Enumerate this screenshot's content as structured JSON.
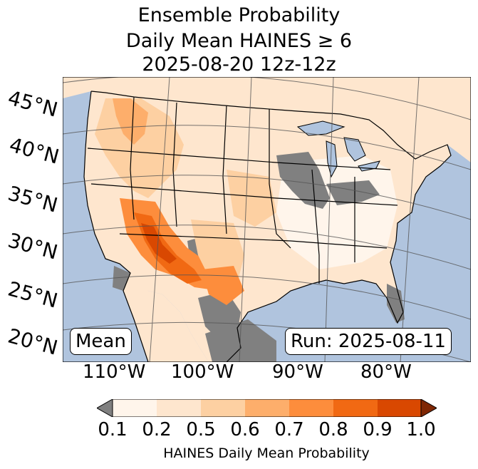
{
  "title": {
    "line1": "Ensemble Probability",
    "line2": "Daily Mean HAINES ≥ 6",
    "line3": "2025-08-20 12z-12z"
  },
  "map": {
    "ocean_color": "#b0c4de",
    "land_color": "#ffffff",
    "no_data_color": "#808080",
    "lat_labels": [
      "45°N",
      "40°N",
      "35°N",
      "30°N",
      "25°N",
      "20°N"
    ],
    "lon_labels": [
      "110°W",
      "100°W",
      "90°W",
      "80°W"
    ],
    "mean_label": "Mean",
    "run_label": "Run: 2025-08-11"
  },
  "colorbar": {
    "bins": [
      0.1,
      0.2,
      0.5,
      0.6,
      0.7,
      0.8,
      0.9,
      1.0
    ],
    "tick_labels": [
      "0.1",
      "0.2",
      "0.5",
      "0.6",
      "0.7",
      "0.8",
      "0.9",
      "1.0"
    ],
    "colors": [
      "#fff5eb",
      "#fee6ce",
      "#fdd0a2",
      "#fdae6b",
      "#fd8d3c",
      "#f16913",
      "#d94801"
    ],
    "under_color": "#808080",
    "over_color": "#7f2704",
    "label": "HAINES Daily Mean Probability"
  }
}
